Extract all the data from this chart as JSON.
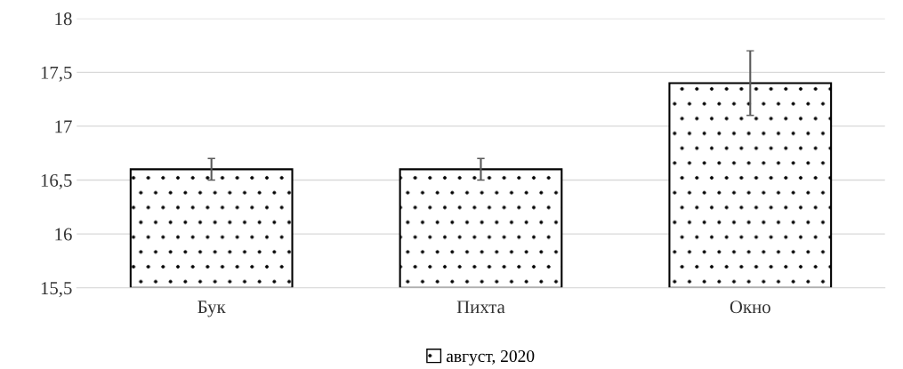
{
  "chart_data": {
    "type": "bar",
    "categories": [
      "Бук",
      "Пихта",
      "Окно"
    ],
    "series": [
      {
        "name": "август, 2020",
        "color": "#000000",
        "values": [
          16.6,
          16.6,
          17.4
        ],
        "errors": [
          0.1,
          0.1,
          0.3
        ]
      }
    ],
    "ylim": [
      15.5,
      18
    ],
    "yticks": [
      {
        "value": 15.5,
        "label": "15,5"
      },
      16,
      {
        "value": 16.5,
        "label": "16,5"
      },
      17,
      {
        "value": 17.5,
        "label": "17,5"
      },
      18
    ],
    "grid": "y",
    "legend": "bottom"
  }
}
